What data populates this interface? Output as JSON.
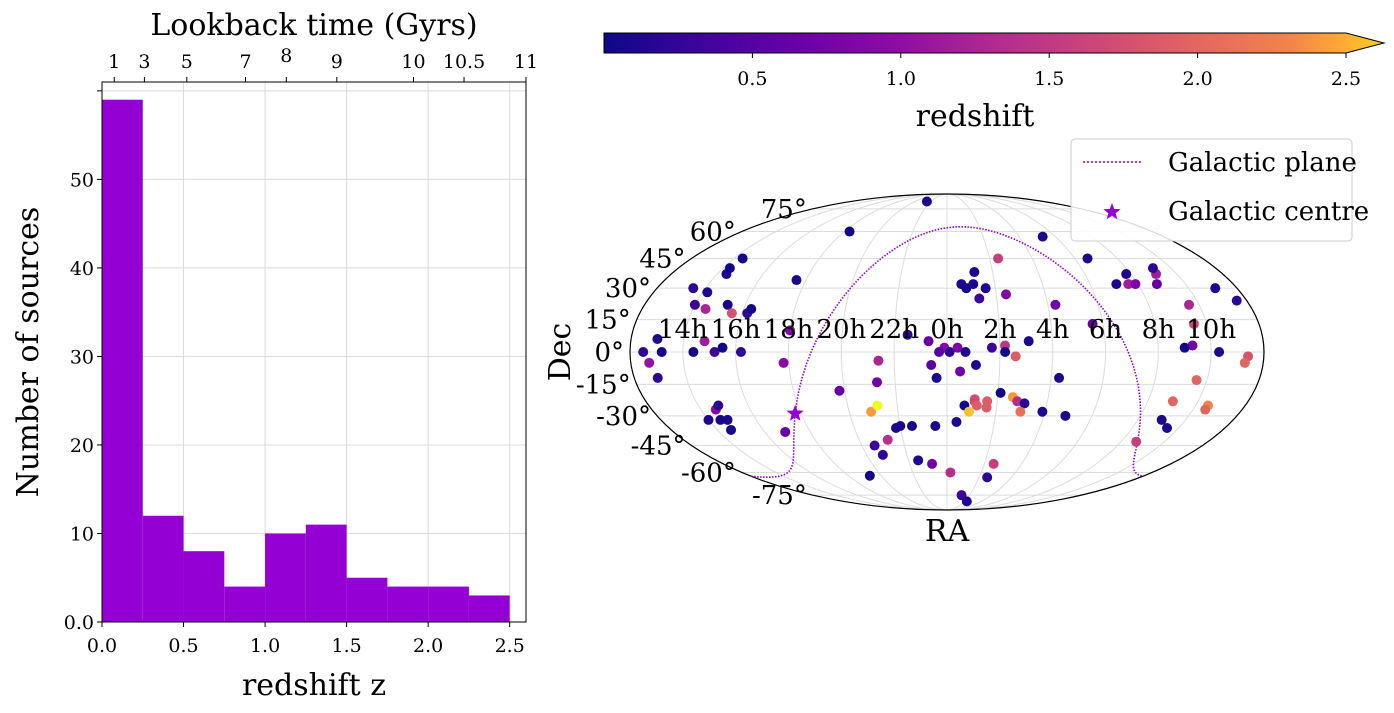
{
  "chart_data": [
    {
      "type": "bar",
      "xlabel": "redshift z",
      "ylabel": "Number of sources",
      "top_xlabel": "Lookback time (Gyrs)",
      "color": "#9400d3",
      "xlim": [
        0.0,
        2.6
      ],
      "ylim": [
        0,
        61
      ],
      "grid": true,
      "bin_edges": [
        0.0,
        0.25,
        0.5,
        0.75,
        1.0,
        1.25,
        1.5,
        1.75,
        2.0,
        2.25,
        2.5
      ],
      "values": [
        59,
        12,
        8,
        4,
        10,
        11,
        5,
        4,
        4,
        3
      ],
      "x_ticks": [
        {
          "v": 0.0,
          "label": "0.0"
        },
        {
          "v": 0.5,
          "label": "0.5"
        },
        {
          "v": 1.0,
          "label": "1.0"
        },
        {
          "v": 1.5,
          "label": "1.5"
        },
        {
          "v": 2.0,
          "label": "2.0"
        },
        {
          "v": 2.5,
          "label": "2.5"
        }
      ],
      "y_ticks": [
        {
          "v": 0,
          "label": "0.0"
        },
        {
          "v": 10,
          "label": "10"
        },
        {
          "v": 20,
          "label": "20"
        },
        {
          "v": 30,
          "label": "30"
        },
        {
          "v": 40,
          "label": "40"
        },
        {
          "v": 50,
          "label": "50"
        },
        {
          "v": 60,
          "label": ""
        }
      ],
      "top_ticks": [
        {
          "z": 0.075,
          "label": "1"
        },
        {
          "z": 0.26,
          "label": "3"
        },
        {
          "z": 0.52,
          "label": "5"
        },
        {
          "z": 0.88,
          "label": "7"
        },
        {
          "z": 1.13,
          "label": "8"
        },
        {
          "z": 1.44,
          "label": "9"
        },
        {
          "z": 1.91,
          "label": "10"
        },
        {
          "z": 2.22,
          "label": "10.5"
        },
        {
          "z": 2.6,
          "label": "11"
        }
      ]
    },
    {
      "type": "scatter",
      "projection": "mollweide",
      "xlabel": "RA",
      "ylabel": "Dec",
      "grid": true,
      "colorbar": {
        "label": "redshift",
        "colormap": "plasma",
        "range": [
          0.0,
          2.5
        ],
        "extend": "max",
        "ticks": [
          {
            "v": 0.5,
            "label": "0.5"
          },
          {
            "v": 1.0,
            "label": "1.0"
          },
          {
            "v": 1.5,
            "label": "1.5"
          },
          {
            "v": 2.0,
            "label": "2.0"
          },
          {
            "v": 2.5,
            "label": "2.5"
          }
        ]
      },
      "ra_labels": [
        "14h",
        "16h",
        "18h",
        "20h",
        "22h",
        "0h",
        "2h",
        "4h",
        "6h",
        "8h",
        "10h"
      ],
      "dec_labels": [
        {
          "dec": 75,
          "label": "75°"
        },
        {
          "dec": 60,
          "label": "60°"
        },
        {
          "dec": 45,
          "label": "45°"
        },
        {
          "dec": 30,
          "label": "30°"
        },
        {
          "dec": 15,
          "label": "15°"
        },
        {
          "dec": 0,
          "label": "0°"
        },
        {
          "dec": -15,
          "label": "-15°"
        },
        {
          "dec": -30,
          "label": "-30°"
        },
        {
          "dec": -45,
          "label": "-45°"
        },
        {
          "dec": -60,
          "label": "-60°"
        },
        {
          "dec": -75,
          "label": "-75°"
        }
      ],
      "legend": {
        "position": "top-right",
        "entries": [
          {
            "label": "Galactic plane",
            "marker": "dotted-line"
          },
          {
            "label": "Galactic centre",
            "marker": "star"
          }
        ]
      },
      "galactic_centre": {
        "ra_h": 17.76,
        "dec": -28.9
      },
      "sources": [
        {
          "ra_h": 21.5,
          "dec": 81,
          "z": 0.1
        },
        {
          "ra_h": 18.3,
          "dec": 60,
          "z": 0.05
        },
        {
          "ra_h": 14.4,
          "dec": 45,
          "z": 0.05
        },
        {
          "ra_h": 14.4,
          "dec": 37,
          "z": 0.1
        },
        {
          "ra_h": 14.3,
          "dec": 40,
          "z": 0.02
        },
        {
          "ra_h": 13.5,
          "dec": 30,
          "z": 0.2
        },
        {
          "ra_h": 14.2,
          "dec": 28,
          "z": 0.1
        },
        {
          "ra_h": 14.0,
          "dec": 22,
          "z": 0.3
        },
        {
          "ra_h": 14.5,
          "dec": 20,
          "z": 1.2
        },
        {
          "ra_h": 15.3,
          "dec": 22,
          "z": 0.05
        },
        {
          "ra_h": 15.6,
          "dec": 18,
          "z": 1.7
        },
        {
          "ra_h": 16.2,
          "dec": 18,
          "z": 0.2
        },
        {
          "ra_h": 16.3,
          "dec": 20,
          "z": 0.05
        },
        {
          "ra_h": 17.6,
          "dec": 34,
          "z": 0.1
        },
        {
          "ra_h": 18.0,
          "dec": 10,
          "z": 0.8
        },
        {
          "ra_h": 16.2,
          "dec": 0,
          "z": 0.2
        },
        {
          "ra_h": 15.2,
          "dec": 0,
          "z": 0.3
        },
        {
          "ra_h": 15.5,
          "dec": 2,
          "z": 0.05
        },
        {
          "ra_h": 13.0,
          "dec": 6,
          "z": 0.1
        },
        {
          "ra_h": 12.5,
          "dec": 0,
          "z": 0.2
        },
        {
          "ra_h": 13.2,
          "dec": 0,
          "z": 0.05
        },
        {
          "ra_h": 14.4,
          "dec": 0,
          "z": 0.05
        },
        {
          "ra_h": 14.8,
          "dec": 5,
          "z": 1.1
        },
        {
          "ra_h": 12.7,
          "dec": -5,
          "z": 1.0
        },
        {
          "ra_h": 12.9,
          "dec": -12,
          "z": 0.2
        },
        {
          "ra_h": 17.8,
          "dec": -5,
          "z": 0.9
        },
        {
          "ra_h": 14.6,
          "dec": -27,
          "z": 0.9
        },
        {
          "ra_h": 14.0,
          "dec": -32,
          "z": 0.1
        },
        {
          "ra_h": 14.5,
          "dec": -32,
          "z": 0.05
        },
        {
          "ra_h": 14.8,
          "dec": -32,
          "z": 0.1
        },
        {
          "ra_h": 14.6,
          "dec": -37,
          "z": 0.05
        },
        {
          "ra_h": 14.8,
          "dec": -25,
          "z": 0.2
        },
        {
          "ra_h": 16.9,
          "dec": -38,
          "z": 0.6
        },
        {
          "ra_h": 19.8,
          "dec": -18,
          "z": 0.6
        },
        {
          "ra_h": 20.9,
          "dec": -28,
          "z": 2.3
        },
        {
          "ra_h": 21.2,
          "dec": -25,
          "z": 2.5
        },
        {
          "ra_h": 21.3,
          "dec": -14,
          "z": 0.7
        },
        {
          "ra_h": 21.4,
          "dec": -4,
          "z": 1.2
        },
        {
          "ra_h": 20.8,
          "dec": -50,
          "z": 0.2
        },
        {
          "ra_h": 20.6,
          "dec": -45,
          "z": 0.3
        },
        {
          "ra_h": 19.3,
          "dec": -62,
          "z": 0.05
        },
        {
          "ra_h": 21.3,
          "dec": -42,
          "z": 1.3
        },
        {
          "ra_h": 21.8,
          "dec": -36,
          "z": 0.1
        },
        {
          "ra_h": 22.0,
          "dec": -35,
          "z": 0.1
        },
        {
          "ra_h": 22.5,
          "dec": -35,
          "z": 0.05
        },
        {
          "ra_h": 22.5,
          "dec": -53,
          "z": 0.1
        },
        {
          "ra_h": 23.2,
          "dec": -55,
          "z": 0.7
        },
        {
          "ra_h": 23.5,
          "dec": -35,
          "z": 0.1
        },
        {
          "ra_h": 23.6,
          "dec": -12,
          "z": 0.1
        },
        {
          "ra_h": 22.5,
          "dec": 8,
          "z": 0.2
        },
        {
          "ra_h": 23.3,
          "dec": 5,
          "z": 0.6
        },
        {
          "ra_h": 23.9,
          "dec": 2,
          "z": 0.9
        },
        {
          "ra_h": 23.7,
          "dec": 0,
          "z": 0.5
        },
        {
          "ra_h": 23.4,
          "dec": -6,
          "z": 0.5
        },
        {
          "ra_h": 0.1,
          "dec": 0,
          "z": 0.2
        },
        {
          "ra_h": 0.4,
          "dec": 2,
          "z": 0.8
        },
        {
          "ra_h": 0.7,
          "dec": 0,
          "z": 0.1
        },
        {
          "ra_h": 0.6,
          "dec": 32,
          "z": 0.1
        },
        {
          "ra_h": 0.8,
          "dec": 30,
          "z": 0.05
        },
        {
          "ra_h": 1.1,
          "dec": 32,
          "z": 0.1
        },
        {
          "ra_h": 1.2,
          "dec": 38,
          "z": 0.1
        },
        {
          "ra_h": 1.6,
          "dec": 30,
          "z": 0.1
        },
        {
          "ra_h": 1.3,
          "dec": 25,
          "z": 0.3
        },
        {
          "ra_h": 1.7,
          "dec": 2,
          "z": 0.3
        },
        {
          "ra_h": 2.4,
          "dec": 45,
          "z": 1.5
        },
        {
          "ra_h": 2.4,
          "dec": 27,
          "z": 0.8
        },
        {
          "ra_h": 2.2,
          "dec": 3,
          "z": 1.4
        },
        {
          "ra_h": 2.2,
          "dec": 0,
          "z": 0.05
        },
        {
          "ra_h": 2.6,
          "dec": -2,
          "z": 1.8
        },
        {
          "ra_h": 1.1,
          "dec": -6,
          "z": 0.1
        },
        {
          "ra_h": 0.5,
          "dec": -9,
          "z": 0.7
        },
        {
          "ra_h": 1.1,
          "dec": -22,
          "z": 1.7
        },
        {
          "ra_h": 1.1,
          "dec": -23,
          "z": 1.6
        },
        {
          "ra_h": 1.6,
          "dec": -23,
          "z": 1.8
        },
        {
          "ra_h": 1.6,
          "dec": -26,
          "z": 1.8
        },
        {
          "ra_h": 1.2,
          "dec": -25,
          "z": 1.8
        },
        {
          "ra_h": 0.7,
          "dec": -25,
          "z": 0.05
        },
        {
          "ra_h": 0.9,
          "dec": -28,
          "z": 2.4
        },
        {
          "ra_h": 0.4,
          "dec": -33,
          "z": 0.1
        },
        {
          "ra_h": 2.1,
          "dec": -19,
          "z": 0.05
        },
        {
          "ra_h": 2.6,
          "dec": -21,
          "z": 2.3
        },
        {
          "ra_h": 2.8,
          "dec": -23,
          "z": 1.3
        },
        {
          "ra_h": 3.1,
          "dec": -24,
          "z": 2.5
        },
        {
          "ra_h": 3.1,
          "dec": -24,
          "z": 0.2
        },
        {
          "ra_h": 3.9,
          "dec": -28,
          "z": 0.1
        },
        {
          "ra_h": 3.1,
          "dec": 5,
          "z": 0.1
        },
        {
          "ra_h": 4.3,
          "dec": -12,
          "z": 0.1
        },
        {
          "ra_h": 4.3,
          "dec": 22,
          "z": 0.7
        },
        {
          "ra_h": 2.5,
          "dec": -55,
          "z": 1.5
        },
        {
          "ra_h": 2.5,
          "dec": -63,
          "z": 0.2
        },
        {
          "ra_h": 1.3,
          "dec": -75,
          "z": 0.3
        },
        {
          "ra_h": 2.3,
          "dec": -80,
          "z": 0.1
        },
        {
          "ra_h": 0.2,
          "dec": -60,
          "z": 1.3
        },
        {
          "ra_h": 5.3,
          "dec": 57,
          "z": 0.1
        },
        {
          "ra_h": 6.6,
          "dec": 45,
          "z": 0.1
        },
        {
          "ra_h": 7.8,
          "dec": 37,
          "z": 0.1
        },
        {
          "ra_h": 7.1,
          "dec": 32,
          "z": 0.1
        },
        {
          "ra_h": 7.6,
          "dec": 32,
          "z": 1.1
        },
        {
          "ra_h": 7.9,
          "dec": 32,
          "z": 0.8
        },
        {
          "ra_h": 8.8,
          "dec": 32,
          "z": 0.6
        },
        {
          "ra_h": 9.1,
          "dec": 37,
          "z": 1.1
        },
        {
          "ra_h": 9.2,
          "dec": 40,
          "z": 0.2
        },
        {
          "ra_h": 9.6,
          "dec": 22,
          "z": 1.2
        },
        {
          "ra_h": 11.1,
          "dec": 30,
          "z": 0.1
        },
        {
          "ra_h": 11.6,
          "dec": 24,
          "z": 0.2
        },
        {
          "ra_h": 9.5,
          "dec": 13,
          "z": 1.6
        },
        {
          "ra_h": 9.3,
          "dec": 3,
          "z": 0.7
        },
        {
          "ra_h": 9.0,
          "dec": 2,
          "z": 0.05
        },
        {
          "ra_h": 10.3,
          "dec": 0,
          "z": 0.1
        },
        {
          "ra_h": 11.4,
          "dec": -2,
          "z": 1.7
        },
        {
          "ra_h": 11.3,
          "dec": -5,
          "z": 1.9
        },
        {
          "ra_h": 9.6,
          "dec": -13,
          "z": 1.9
        },
        {
          "ra_h": 10.5,
          "dec": -25,
          "z": 2.2
        },
        {
          "ra_h": 10.5,
          "dec": -27,
          "z": 1.9
        },
        {
          "ra_h": 9.0,
          "dec": -32,
          "z": 0.1
        },
        {
          "ra_h": 9.5,
          "dec": -36,
          "z": 0.1
        },
        {
          "ra_h": 8.7,
          "dec": -43,
          "z": 1.5
        },
        {
          "ra_h": 9.0,
          "dec": -23,
          "z": 1.9
        },
        {
          "ra_h": 5.6,
          "dec": 13,
          "z": 0.6
        },
        {
          "ra_h": 4.9,
          "dec": -30,
          "z": 0.1
        },
        {
          "ra_h": 3.0,
          "dec": -28,
          "z": 2.0
        }
      ]
    }
  ]
}
